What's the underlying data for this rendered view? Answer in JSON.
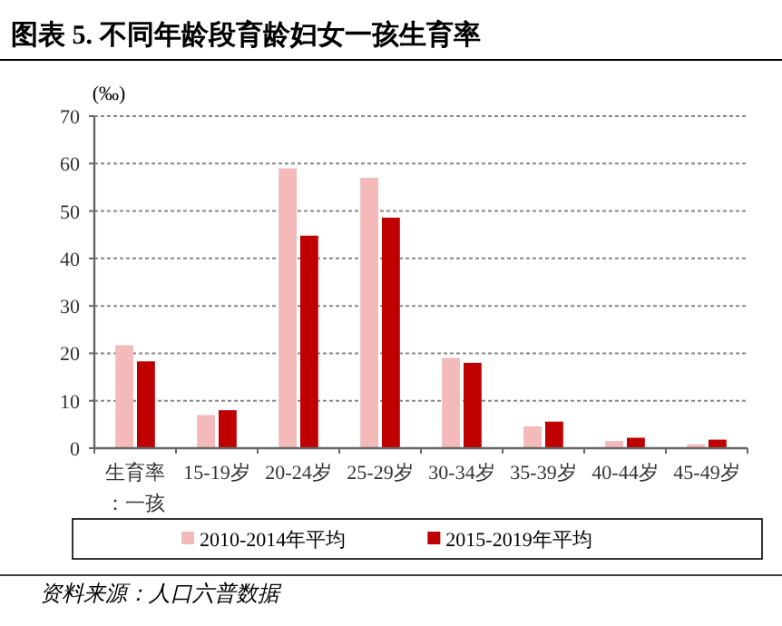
{
  "chart_data": {
    "type": "bar",
    "title": "图表 5. 不同年龄段育龄妇女一孩生育率",
    "ylabel": "(‰)",
    "categories": [
      "生育率：一孩",
      "15-19岁",
      "20-24岁",
      "25-29岁",
      "30-34岁",
      "35-39岁",
      "40-44岁",
      "45-49岁"
    ],
    "series": [
      {
        "name": "2010-2014年平均",
        "color": "#f4b9b9",
        "values": [
          21.7,
          7,
          59,
          57,
          19,
          4.6,
          1.5,
          0.8
        ]
      },
      {
        "name": "2015-2019年平均",
        "color": "#c00000",
        "values": [
          18.3,
          8,
          44.8,
          48.6,
          18,
          5.6,
          2.2,
          1.8
        ]
      }
    ],
    "ylim": [
      0,
      70
    ],
    "yticks": [
      0,
      10,
      20,
      30,
      40,
      50,
      60,
      70
    ],
    "grid": "y",
    "legend": "bottom",
    "annotations": [
      "资料来源：人口六普数据"
    ]
  }
}
